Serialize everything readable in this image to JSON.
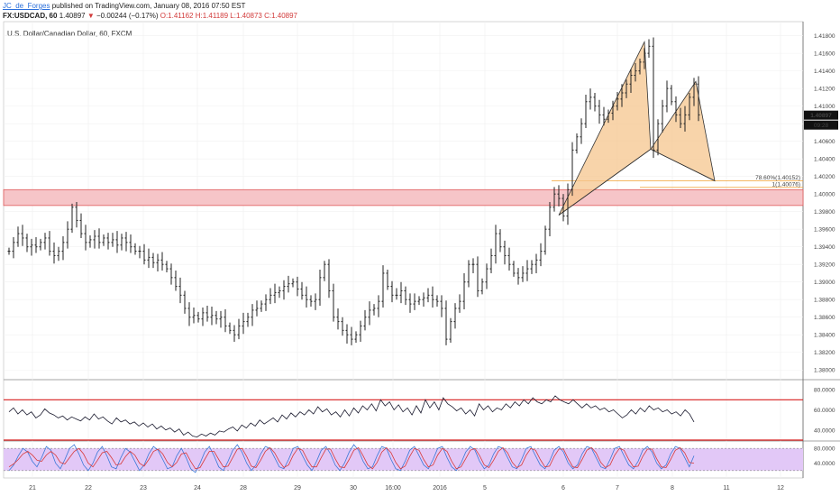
{
  "header": {
    "author": "JC_de_Forges",
    "published": "published on TradingView.com, January 08, 2016 07:50 EST",
    "symbol": "FX:USDCAD, 60",
    "last": "1.40897",
    "change": "−0.00244 (−0.17%)",
    "ohlc": "O:1.41162 H:1.41189 L:1.40873 C:1.40897"
  },
  "chart_title": "U.S. Dollar/Canadian Dollar, 60, FXCM",
  "colors": {
    "price_line": "#222222",
    "zone_fill": "#f6c5c8",
    "zone_border": "#e05a5a",
    "pattern_fill": "#f6c58e",
    "pattern_stroke": "#333333",
    "fib_line": "#f0a030",
    "rsi_line": "#1a1a2e",
    "rsi_levels": "#d81e1e",
    "stoch_bg": "#e2c8f7",
    "stoch_k": "#3a78d8",
    "stoch_d": "#d83a3a"
  },
  "chart_data": {
    "type": "line",
    "price_axis": {
      "ylim": [
        1.379,
        1.4196
      ],
      "ticks": [
        "1.41800",
        "1.41600",
        "1.41400",
        "1.41200",
        "1.41000",
        "1.40800",
        "1.40600",
        "1.40400",
        "1.40200",
        "1.40000",
        "1.39800",
        "1.39600",
        "1.39400",
        "1.39200",
        "1.39000",
        "1.38800",
        "1.38600",
        "1.38400",
        "1.38200",
        "1.38000"
      ],
      "last_price_label": "1.40897",
      "countdown_label": "09:28"
    },
    "x_ticks": [
      "21",
      "22",
      "23",
      "24",
      "28",
      "29",
      "30",
      "16:00",
      "2016",
      "5",
      "6",
      "7",
      "8",
      "11",
      "12"
    ],
    "price_series": {
      "x": [
        0,
        5,
        10,
        15,
        20,
        25,
        30,
        35,
        40,
        45,
        50,
        55,
        60,
        65,
        70,
        75,
        80,
        85,
        90,
        95,
        100,
        105,
        110,
        115,
        120,
        125,
        130,
        135,
        140,
        145,
        150,
        155,
        160,
        165,
        170,
        175,
        180,
        185,
        190,
        195,
        200,
        205,
        210,
        215,
        220,
        225,
        230,
        235,
        240,
        245,
        250,
        255,
        260,
        265,
        270,
        275,
        280,
        285,
        290,
        295,
        300,
        305,
        310,
        315,
        320,
        325,
        330,
        335,
        340,
        345,
        350,
        355,
        360,
        365,
        370,
        375,
        380,
        385,
        390,
        395,
        400,
        405,
        410,
        415,
        420,
        425,
        430,
        435,
        440,
        445,
        450,
        455,
        460,
        465,
        470,
        475,
        480,
        485,
        490,
        495,
        500,
        505,
        510,
        515,
        520,
        525,
        530,
        535,
        540,
        545,
        550,
        555,
        560,
        565,
        570,
        575,
        580,
        585,
        590,
        595,
        600,
        605,
        610,
        615,
        620,
        625,
        630,
        635,
        640,
        645,
        650,
        655,
        660,
        665,
        670,
        675,
        680,
        685,
        690,
        695,
        700,
        705,
        710,
        715,
        720,
        725,
        730,
        735,
        740,
        745,
        750,
        755,
        760,
        765
      ],
      "close": [
        1.3935,
        1.3945,
        1.3955,
        1.395,
        1.394,
        1.3942,
        1.394,
        1.3945,
        1.395,
        1.3935,
        1.393,
        1.3935,
        1.3945,
        1.396,
        1.3985,
        1.397,
        1.3955,
        1.3945,
        1.3948,
        1.3952,
        1.3945,
        1.395,
        1.3945,
        1.3948,
        1.3942,
        1.395,
        1.3945,
        1.394,
        1.3935,
        1.3935,
        1.3925,
        1.3928,
        1.3922,
        1.3925,
        1.392,
        1.3915,
        1.3905,
        1.3895,
        1.3885,
        1.387,
        1.386,
        1.3862,
        1.3858,
        1.3865,
        1.386,
        1.3862,
        1.3858,
        1.386,
        1.385,
        1.3845,
        1.384,
        1.385,
        1.3855,
        1.386,
        1.3868,
        1.387,
        1.3875,
        1.388,
        1.3885,
        1.3888,
        1.389,
        1.3895,
        1.3898,
        1.39,
        1.3892,
        1.3885,
        1.388,
        1.3878,
        1.388,
        1.3905,
        1.392,
        1.389,
        1.386,
        1.3855,
        1.3845,
        1.384,
        1.3835,
        1.384,
        1.385,
        1.386,
        1.3868,
        1.387,
        1.3878,
        1.391,
        1.3895,
        1.3885,
        1.3885,
        1.389,
        1.388,
        1.3875,
        1.3878,
        1.388,
        1.3882,
        1.3885,
        1.388,
        1.3878,
        1.387,
        1.3835,
        1.3855,
        1.387,
        1.3878,
        1.39,
        1.392,
        1.392,
        1.389,
        1.39,
        1.3915,
        1.393,
        1.3955,
        1.394,
        1.393,
        1.392,
        1.391,
        1.3905,
        1.391,
        1.3915,
        1.392,
        1.3925,
        1.3935,
        1.396,
        1.3985,
        1.4,
        1.3995,
        1.3975,
        1.4005,
        1.405,
        1.4065,
        1.408,
        1.4105,
        1.411,
        1.41,
        1.409,
        1.4085,
        1.4092,
        1.41,
        1.4108,
        1.4115,
        1.4125,
        1.4135,
        1.414,
        1.415,
        1.416,
        1.4168,
        1.405,
        1.408,
        1.41,
        1.412,
        1.4105,
        1.409,
        1.408,
        1.409,
        1.411,
        1.4125,
        1.409
      ]
    },
    "harmonic_pattern": {
      "label": "bullish bat / harmonic pattern",
      "points": [
        {
          "x": 610,
          "y": 1.3976
        },
        {
          "x": 705,
          "y": 1.4173
        },
        {
          "x": 712,
          "y": 1.4051
        },
        {
          "x": 762,
          "y": 1.4128
        },
        {
          "x": 783,
          "y": 1.4015
        }
      ]
    },
    "fib_levels": [
      {
        "label": "78.60%(1.40152)",
        "value": 1.40152
      },
      {
        "label": "1(1.40076)",
        "value": 1.40076
      }
    ],
    "resistance_zone": {
      "low": 1.3987,
      "high": 1.4005
    },
    "rsi": {
      "ylim": [
        30,
        90
      ],
      "ticks": [
        "80.0000",
        "60.0000",
        "40.0000"
      ],
      "levels": [
        70,
        30
      ],
      "values": [
        58,
        62,
        56,
        60,
        55,
        58,
        52,
        55,
        61,
        57,
        55,
        52,
        54,
        50,
        53,
        51,
        49,
        53,
        50,
        56,
        51,
        53,
        49,
        46,
        52,
        48,
        50,
        46,
        48,
        44,
        47,
        43,
        46,
        41,
        44,
        40,
        42,
        38,
        41,
        35,
        38,
        34,
        33,
        36,
        34,
        37,
        35,
        39,
        38,
        41,
        43,
        39,
        45,
        42,
        47,
        44,
        50,
        46,
        49,
        52,
        48,
        55,
        51,
        57,
        53,
        58,
        55,
        60,
        56,
        63,
        58,
        61,
        55,
        58,
        53,
        60,
        54,
        62,
        57,
        64,
        60,
        66,
        59,
        70,
        64,
        68,
        60,
        65,
        58,
        62,
        55,
        64,
        57,
        70,
        62,
        68,
        60,
        72,
        66,
        63,
        59,
        62,
        56,
        60,
        54,
        66,
        60,
        64,
        58,
        62,
        60,
        66,
        62,
        68,
        64,
        70,
        66,
        72,
        68,
        66,
        70,
        68,
        74,
        70,
        68,
        66,
        70,
        66,
        62,
        66,
        62,
        64,
        60,
        62,
        58,
        60,
        56,
        52,
        55,
        60,
        56,
        62,
        58,
        64,
        60,
        62,
        58,
        60,
        56,
        58,
        54,
        60,
        56,
        48
      ]
    },
    "stochastic": {
      "ylim": [
        0,
        100
      ],
      "ticks": [
        "80.0000",
        "40.0000"
      ],
      "levels": [
        80,
        20
      ],
      "k": [
        20,
        35,
        60,
        80,
        70,
        45,
        30,
        55,
        85,
        75,
        40,
        25,
        50,
        80,
        90,
        65,
        35,
        20,
        40,
        70,
        85,
        60,
        30,
        25,
        55,
        80,
        70,
        45,
        20,
        35,
        65,
        85,
        75,
        50,
        25,
        30,
        60,
        80,
        55,
        25,
        15,
        40,
        70,
        85,
        60,
        30,
        20,
        45,
        75,
        90,
        70,
        40,
        20,
        35,
        65,
        85,
        80,
        55,
        30,
        25,
        50,
        80,
        85,
        60,
        35,
        20,
        45,
        75,
        85,
        65,
        35,
        20,
        40,
        70,
        90,
        75,
        45,
        25,
        30,
        60,
        85,
        80,
        50,
        25,
        20,
        45,
        75,
        85,
        60,
        35,
        25,
        50,
        80,
        85,
        55,
        30,
        20,
        40,
        70,
        85,
        75,
        45,
        25,
        35,
        65,
        85,
        80,
        55,
        30,
        25,
        50,
        80,
        85,
        60,
        35,
        25,
        45,
        75,
        85,
        70,
        40,
        25,
        35,
        65,
        85,
        80,
        55,
        30,
        25,
        50,
        80,
        85,
        60,
        35,
        25,
        45,
        75,
        85,
        70,
        40,
        25,
        35,
        65,
        85,
        80,
        55,
        30,
        60
      ],
      "d": [
        30,
        38,
        50,
        65,
        72,
        62,
        48,
        45,
        62,
        72,
        62,
        42,
        38,
        55,
        72,
        80,
        65,
        40,
        30,
        48,
        68,
        72,
        55,
        35,
        38,
        58,
        72,
        62,
        40,
        32,
        50,
        72,
        78,
        65,
        42,
        30,
        42,
        65,
        68,
        45,
        25,
        28,
        50,
        72,
        72,
        50,
        30,
        32,
        55,
        78,
        80,
        58,
        32,
        28,
        48,
        72,
        82,
        68,
        45,
        28,
        35,
        62,
        80,
        75,
        50,
        30,
        30,
        55,
        78,
        78,
        52,
        30,
        28,
        50,
        75,
        82,
        60,
        35,
        25,
        42,
        70,
        82,
        68,
        42,
        25,
        32,
        58,
        80,
        75,
        50,
        30,
        35,
        62,
        80,
        72,
        45,
        25,
        30,
        52,
        75,
        80,
        60,
        35,
        28,
        48,
        72,
        82,
        68,
        42,
        28,
        35,
        62,
        80,
        75,
        50,
        30,
        32,
        58,
        78,
        78,
        52,
        30,
        28,
        50,
        75,
        82,
        68,
        42,
        28,
        35,
        62,
        80,
        75,
        50,
        30,
        32,
        58,
        78,
        78,
        52,
        30,
        28,
        50,
        75,
        82,
        68,
        42,
        40
      ]
    }
  }
}
